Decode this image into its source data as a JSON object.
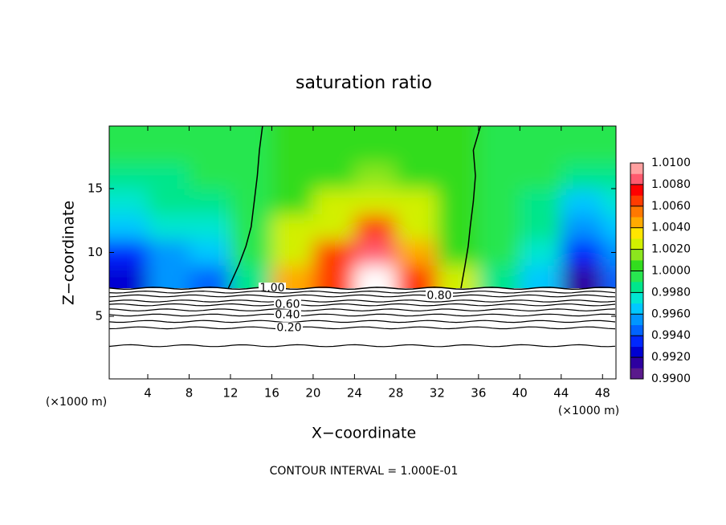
{
  "chart_data": {
    "type": "contour",
    "title": "saturation ratio",
    "x_label": "X−coordinate",
    "y_label": "Z−coordinate",
    "x_unit": "(×1000 m)",
    "footer": "CONTOUR INTERVAL = 1.000E-01",
    "xlim": [
      0.27,
      49.3
    ],
    "ylim": [
      0.1,
      19.9
    ],
    "xticks": [
      4,
      8,
      12,
      16,
      20,
      24,
      28,
      32,
      36,
      40,
      44,
      48
    ],
    "yticks": [
      5,
      10,
      15
    ],
    "colorbar": {
      "lim": [
        0.99,
        1.01
      ],
      "ticks": [
        {
          "value": 0.99,
          "label": "0.9900"
        },
        {
          "value": 0.992,
          "label": "0.9920"
        },
        {
          "value": 0.994,
          "label": "0.9940"
        },
        {
          "value": 0.996,
          "label": "0.9960"
        },
        {
          "value": 0.998,
          "label": "0.9980"
        },
        {
          "value": 1.0,
          "label": "1.0000"
        },
        {
          "value": 1.002,
          "label": "1.0020"
        },
        {
          "value": 1.004,
          "label": "1.0040"
        },
        {
          "value": 1.006,
          "label": "1.0060"
        },
        {
          "value": 1.008,
          "label": "1.0080"
        },
        {
          "value": 1.01,
          "label": "1.0100"
        }
      ],
      "colors": [
        "#5a1a8c",
        "#2d00a0",
        "#0000d2",
        "#0028ff",
        "#0064ff",
        "#0096ff",
        "#00c8ff",
        "#00e6d2",
        "#00e68c",
        "#28e650",
        "#32dc1e",
        "#8ce61e",
        "#d2f000",
        "#ffe600",
        "#ffaa00",
        "#ff7800",
        "#ff3c00",
        "#ff0000",
        "#ff5a6e",
        "#ffa0a0"
      ]
    },
    "field": {
      "x": [
        2,
        6,
        10,
        14,
        18,
        22,
        26,
        30,
        34,
        38,
        42,
        46,
        50
      ],
      "z": [
        8,
        10,
        12,
        14,
        16,
        18,
        20
      ],
      "values": [
        [
          0.992,
          0.993,
          0.996,
          0.997,
          0.998,
          0.999,
          0.999
        ],
        [
          0.995,
          0.995,
          0.997,
          0.998,
          0.998,
          0.999,
          0.999
        ],
        [
          0.994,
          0.996,
          0.997,
          0.998,
          0.999,
          0.999,
          0.999
        ],
        [
          0.998,
          0.999,
          0.9995,
          0.9995,
          0.9995,
          0.9995,
          0.9995
        ],
        [
          1.005,
          1.003,
          1.002,
          1.001,
          1.0005,
          1.0003,
          1.0002
        ],
        [
          1.007,
          1.006,
          1.003,
          1.002,
          1.001,
          1.0005,
          1.0003
        ],
        [
          null,
          1.009,
          1.006,
          1.003,
          1.0015,
          1.0008,
          1.0004
        ],
        [
          1.006,
          1.005,
          1.003,
          1.002,
          1.001,
          1.0005,
          1.0003
        ],
        [
          1.002,
          1.001,
          1.001,
          1.0005,
          1.0003,
          1.0002,
          1.0002
        ],
        [
          0.9985,
          0.999,
          0.999,
          0.9995,
          0.9995,
          0.9995,
          0.9995
        ],
        [
          0.996,
          0.997,
          0.998,
          0.998,
          0.999,
          0.999,
          0.999
        ],
        [
          0.991,
          0.993,
          0.995,
          0.996,
          0.998,
          0.999,
          0.999
        ],
        [
          0.994,
          0.995,
          0.996,
          0.997,
          0.998,
          0.999,
          0.999
        ]
      ]
    },
    "contours": [
      {
        "level": 1.0,
        "z": 7.2,
        "label": "1.00"
      },
      {
        "level": 0.9,
        "z": 6.9
      },
      {
        "level": 0.8,
        "z": 6.6,
        "label": "0.80"
      },
      {
        "level": 0.7,
        "z": 6.2
      },
      {
        "level": 0.6,
        "z": 5.9,
        "label": "0.60"
      },
      {
        "level": 0.5,
        "z": 5.5
      },
      {
        "level": 0.4,
        "z": 5.1,
        "label": "0.40"
      },
      {
        "level": 0.3,
        "z": 4.6
      },
      {
        "level": 0.2,
        "z": 4.1,
        "label": "0.20"
      },
      {
        "level": 0.1,
        "z": 2.7
      }
    ],
    "boundaries": [
      {
        "x": [
          11.8,
          12.8,
          13.5,
          14,
          14.3,
          14.6,
          14.8,
          15.1
        ],
        "z": [
          7.2,
          9,
          10.5,
          12,
          14,
          16,
          18,
          19.9
        ]
      },
      {
        "x": [
          34.3,
          34.7,
          35,
          35.2,
          35.5,
          35.7,
          35.5,
          36.2
        ],
        "z": [
          7.2,
          9,
          10.5,
          12,
          14,
          16,
          18,
          19.9
        ]
      }
    ]
  }
}
